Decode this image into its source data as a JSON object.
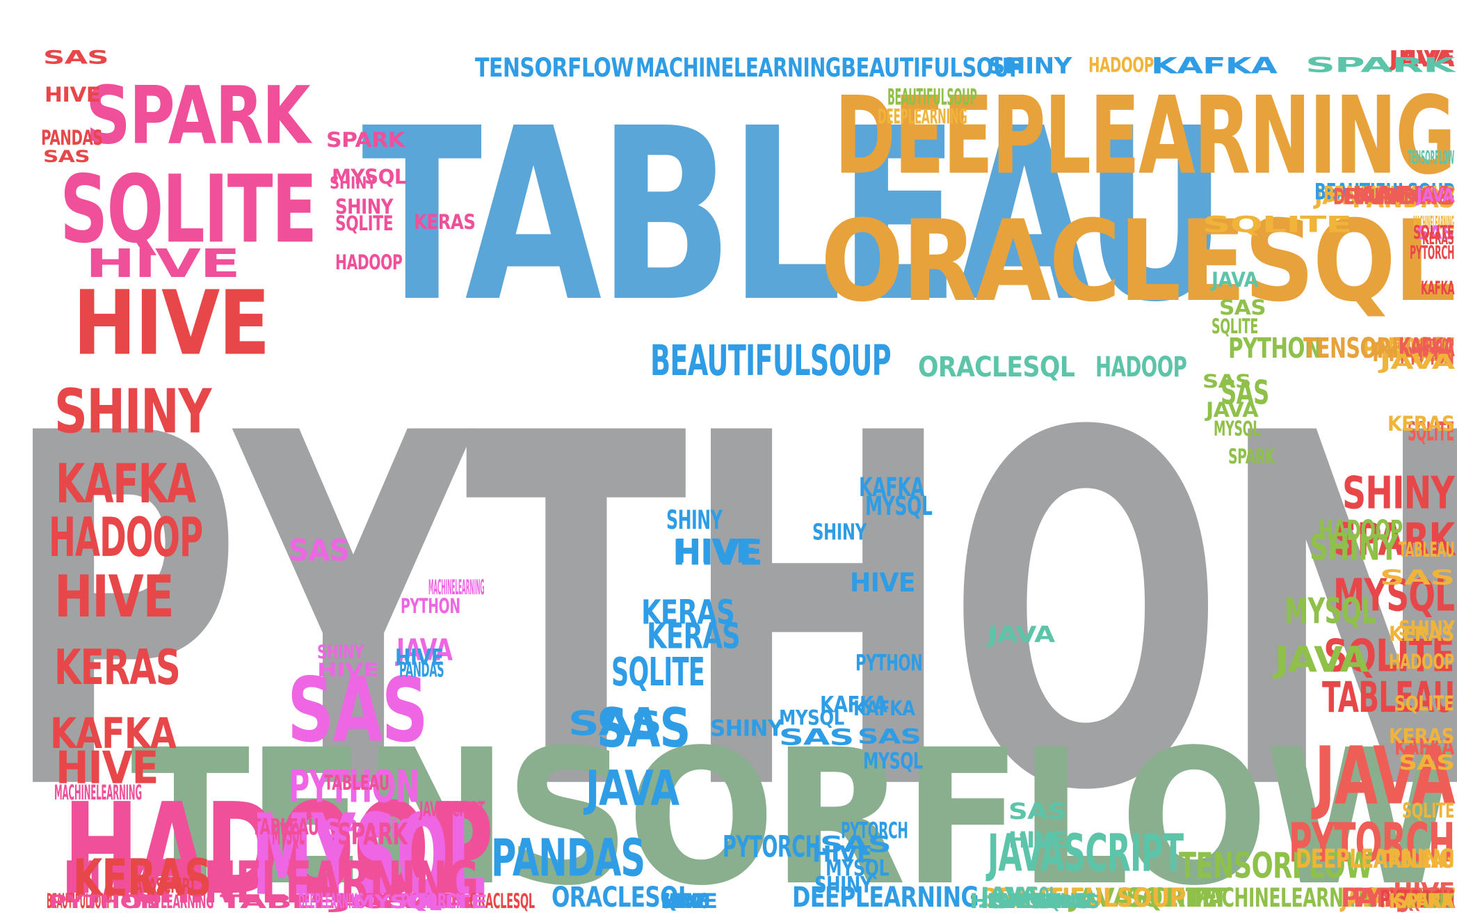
{
  "palette": {
    "red": "#e8474a",
    "coral": "#ee5e57",
    "pink": "#f0509a",
    "magenta": "#ee66e4",
    "blue": "#5aa6d9",
    "skyblue": "#2f9de6",
    "teal": "#5cc4a8",
    "green": "#8aaf8e",
    "lime": "#8fc04a",
    "orange": "#e8a23c",
    "gold": "#f0b43a",
    "gray": "#a0a2a3"
  },
  "words": [
    {
      "text": "PYTHON",
      "color": "gray",
      "size": 8
    },
    {
      "text": "TABLEAU",
      "color": "blue",
      "size": 7
    },
    {
      "text": "TENSORFLOW",
      "color": "green",
      "size": 7
    },
    {
      "text": "DEEPLEARNING",
      "color": "orange",
      "size": 5
    },
    {
      "text": "ORACLESQL",
      "color": "orange",
      "size": 5
    },
    {
      "text": "HADOOP",
      "color": "pink",
      "size": 5
    },
    {
      "text": "MYSQL",
      "color": "magenta",
      "size": 4
    },
    {
      "text": "SQLITE",
      "color": "pink",
      "size": 4
    },
    {
      "text": "SPARK",
      "color": "pink",
      "size": 4
    },
    {
      "text": "HIVE",
      "color": "red",
      "size": 4
    },
    {
      "text": "SAS",
      "color": "magenta",
      "size": 4
    },
    {
      "text": "JAVA",
      "color": "coral",
      "size": 4
    },
    {
      "text": "MACHINELEARNING",
      "color": "pink",
      "size": 3
    },
    {
      "text": "SHINY",
      "color": "red",
      "size": 3
    },
    {
      "text": "KAFKA",
      "color": "red",
      "size": 3
    },
    {
      "text": "HADOOP",
      "color": "red",
      "size": 3
    },
    {
      "text": "HIVE",
      "color": "red",
      "size": 3
    },
    {
      "text": "KERAS",
      "color": "red",
      "size": 3
    },
    {
      "text": "KERAS",
      "color": "red",
      "size": 3
    },
    {
      "text": "JAVASCRIPT",
      "color": "teal",
      "size": 3
    },
    {
      "text": "PYTORCH",
      "color": "coral",
      "size": 3
    },
    {
      "text": "PANDAS",
      "color": "skyblue",
      "size": 3
    },
    {
      "text": "SAS",
      "color": "skyblue",
      "size": 3
    },
    {
      "text": "JAVA",
      "color": "skyblue",
      "size": 3
    },
    {
      "text": "PYTHON",
      "color": "magenta",
      "size": 3
    },
    {
      "text": "SPARK",
      "color": "red",
      "size": 3
    },
    {
      "text": "SHINY",
      "color": "red",
      "size": 3
    },
    {
      "text": "MYSQL",
      "color": "red",
      "size": 3
    },
    {
      "text": "SQLITE",
      "color": "red",
      "size": 3
    },
    {
      "text": "TABLEAU",
      "color": "red",
      "size": 3
    },
    {
      "text": "BEAUTIFULSOUP",
      "color": "skyblue",
      "size": 3
    },
    {
      "text": "TENSORFLOW",
      "color": "lime",
      "size": 3
    },
    {
      "text": "SQLITE",
      "color": "skyblue",
      "size": 3
    },
    {
      "text": "KAFKA",
      "color": "red",
      "size": 3
    },
    {
      "text": "HIVE",
      "color": "red",
      "size": 3
    },
    {
      "text": "HIVE",
      "color": "pink",
      "size": 3
    },
    {
      "text": "PYTORCH",
      "color": "skyblue",
      "size": 2
    },
    {
      "text": "DEEPLEARNING",
      "color": "skyblue",
      "size": 2
    },
    {
      "text": "ORACLESQL",
      "color": "skyblue",
      "size": 2
    },
    {
      "text": "TENSORFLOW",
      "color": "skyblue",
      "size": 2
    },
    {
      "text": "MACHINELEARNING",
      "color": "skyblue",
      "size": 2
    },
    {
      "text": "BEAUTIFULSOUP",
      "color": "skyblue",
      "size": 2
    },
    {
      "text": "ORACLESQL",
      "color": "teal",
      "size": 2
    },
    {
      "text": "HADOOP",
      "color": "teal",
      "size": 2
    },
    {
      "text": "PYTHON",
      "color": "lime",
      "size": 2
    },
    {
      "text": "PANDAS",
      "color": "gold",
      "size": 2
    },
    {
      "text": "SAS",
      "color": "gold",
      "size": 2
    },
    {
      "text": "PYTHON",
      "color": "orange",
      "size": 2
    },
    {
      "text": "TENSORFLOW",
      "color": "orange",
      "size": 2
    },
    {
      "text": "KAFKA",
      "color": "coral",
      "size": 2
    },
    {
      "text": "DEEPLEARNING",
      "color": "gold",
      "size": 2
    },
    {
      "text": "TABLEAU",
      "color": "gold",
      "size": 2
    },
    {
      "text": "PANDAS",
      "color": "gold",
      "size": 2
    },
    {
      "text": "SHINY",
      "color": "lime",
      "size": 2
    },
    {
      "text": "MYSQL",
      "color": "lime",
      "size": 2
    },
    {
      "text": "JAVA",
      "color": "lime",
      "size": 2
    },
    {
      "text": "HADOOP",
      "color": "lime",
      "size": 2
    },
    {
      "text": "SAS",
      "color": "lime",
      "size": 2
    },
    {
      "text": "HIVE",
      "color": "skyblue",
      "size": 2
    },
    {
      "text": "KERAS",
      "color": "skyblue",
      "size": 2
    },
    {
      "text": "SAS",
      "color": "skyblue",
      "size": 2
    },
    {
      "text": "KERAS",
      "color": "skyblue",
      "size": 2
    },
    {
      "text": "HIVE",
      "color": "skyblue",
      "size": 2
    },
    {
      "text": "SHINY",
      "color": "skyblue",
      "size": 2
    },
    {
      "text": "KAFKA",
      "color": "skyblue",
      "size": 2
    },
    {
      "text": "MYSQL",
      "color": "skyblue",
      "size": 2
    },
    {
      "text": "HIVE",
      "color": "skyblue",
      "size": 2
    },
    {
      "text": "JAVA",
      "color": "magenta",
      "size": 2
    },
    {
      "text": "SPARK",
      "color": "magenta",
      "size": 2
    },
    {
      "text": "SAS",
      "color": "magenta",
      "size": 2
    },
    {
      "text": "TABLEAU",
      "color": "pink",
      "size": 2
    },
    {
      "text": "MYSQL",
      "color": "pink",
      "size": 2
    },
    {
      "text": "SPARK",
      "color": "pink",
      "size": 2
    },
    {
      "text": "JAVASCRIPT",
      "color": "lime",
      "size": 2
    },
    {
      "text": "SQLITE",
      "color": "lime",
      "size": 2
    },
    {
      "text": "MACHINELEARNING",
      "color": "lime",
      "size": 2
    },
    {
      "text": "JAVASCRIPT",
      "color": "gold",
      "size": 2
    },
    {
      "text": "PYTHON",
      "color": "gold",
      "size": 2
    },
    {
      "text": "PYTORCH",
      "color": "coral",
      "size": 2
    },
    {
      "text": "PANDAS",
      "color": "coral",
      "size": 2
    },
    {
      "text": "JAVA",
      "color": "coral",
      "size": 2
    },
    {
      "text": "SQLITE",
      "color": "coral",
      "size": 2
    },
    {
      "text": "PYTHON",
      "color": "coral",
      "size": 2
    },
    {
      "text": "KERAS",
      "color": "coral",
      "size": 2
    },
    {
      "text": "HIVE",
      "color": "coral",
      "size": 2
    },
    {
      "text": "PYTORCH",
      "color": "coral",
      "size": 2
    },
    {
      "text": "SQLITE",
      "color": "coral",
      "size": 2
    },
    {
      "text": "SPARK",
      "color": "coral",
      "size": 2
    },
    {
      "text": "HADOOP",
      "color": "coral",
      "size": 2
    },
    {
      "text": "JAVA",
      "color": "coral",
      "size": 2
    },
    {
      "text": "KAFKA",
      "color": "coral",
      "size": 2
    },
    {
      "text": "HIVE",
      "color": "coral",
      "size": 2
    },
    {
      "text": "SQLITE",
      "color": "coral",
      "size": 2
    },
    {
      "text": "PANDAS",
      "color": "coral",
      "size": 2
    },
    {
      "text": "SPARK",
      "color": "red",
      "size": 2
    },
    {
      "text": "PYTORCH",
      "color": "red",
      "size": 2
    },
    {
      "text": "SAS",
      "color": "red",
      "size": 2
    },
    {
      "text": "JAVA",
      "color": "red",
      "size": 2
    },
    {
      "text": "HIVE",
      "color": "red",
      "size": 2
    },
    {
      "text": "TENSORFLOW",
      "color": "teal",
      "size": 2
    },
    {
      "text": "MACHINELEARNING",
      "color": "gold",
      "size": 2
    },
    {
      "text": "BEAUTIFULSOUP",
      "color": "gold",
      "size": 2
    },
    {
      "text": "JAVASCRIPT",
      "color": "gold",
      "size": 2
    },
    {
      "text": "BEAUTIFULSOUP",
      "color": "skyblue",
      "size": 2
    },
    {
      "text": "SPARK",
      "color": "teal",
      "size": 2
    },
    {
      "text": "SQLITE",
      "color": "gold",
      "size": 2
    },
    {
      "text": "HADOOP",
      "color": "gold",
      "size": 2
    },
    {
      "text": "SHINY",
      "color": "skyblue",
      "size": 2
    },
    {
      "text": "KAFKA",
      "color": "skyblue",
      "size": 2
    },
    {
      "text": "BEAUTIFULSOUP",
      "color": "lime",
      "size": 2
    },
    {
      "text": "DEEPLEARNING",
      "color": "gold",
      "size": 2
    },
    {
      "text": "BEAUTIFULSOUP",
      "color": "gold",
      "size": 2
    },
    {
      "text": "DEEPLEARNING",
      "color": "coral",
      "size": 2
    },
    {
      "text": "PANDAS",
      "color": "coral",
      "size": 2
    },
    {
      "text": "KAFKA",
      "color": "coral",
      "size": 2
    },
    {
      "text": "JAVA",
      "color": "magenta",
      "size": 2
    },
    {
      "text": "SAS",
      "color": "magenta",
      "size": 2
    },
    {
      "text": "HIVE",
      "color": "skyblue",
      "size": 2
    },
    {
      "text": "PANDAS",
      "color": "skyblue",
      "size": 2
    },
    {
      "text": "SAS",
      "color": "skyblue",
      "size": 2
    },
    {
      "text": "SHINY",
      "color": "skyblue",
      "size": 2
    },
    {
      "text": "MYSQL",
      "color": "skyblue",
      "size": 2
    },
    {
      "text": "SHINY",
      "color": "skyblue",
      "size": 2
    },
    {
      "text": "KAFKA",
      "color": "skyblue",
      "size": 2
    },
    {
      "text": "SAS",
      "color": "skyblue",
      "size": 2
    },
    {
      "text": "MYSQL",
      "color": "skyblue",
      "size": 2
    },
    {
      "text": "SHINY",
      "color": "skyblue",
      "size": 2
    },
    {
      "text": "HIVE",
      "color": "skyblue",
      "size": 2
    },
    {
      "text": "PYTORCH",
      "color": "skyblue",
      "size": 2
    },
    {
      "text": "PYTHON",
      "color": "skyblue",
      "size": 2
    },
    {
      "text": "MYSQL",
      "color": "skyblue",
      "size": 2
    },
    {
      "text": "SAS",
      "color": "skyblue",
      "size": 2
    },
    {
      "text": "KAFKA",
      "color": "skyblue",
      "size": 1
    },
    {
      "text": "HIVE",
      "color": "skyblue",
      "size": 1
    },
    {
      "text": "SHINY",
      "color": "skyblue",
      "size": 1
    },
    {
      "text": "HIVE",
      "color": "skyblue",
      "size": 1
    },
    {
      "text": "PANDAS",
      "color": "skyblue",
      "size": 1
    },
    {
      "text": "KERAS",
      "color": "teal",
      "size": 1
    },
    {
      "text": "JAVA",
      "color": "teal",
      "size": 1
    },
    {
      "text": "SAS",
      "color": "teal",
      "size": 1
    },
    {
      "text": "HIVE",
      "color": "teal",
      "size": 1
    },
    {
      "text": "MYSQL",
      "color": "teal",
      "size": 1
    },
    {
      "text": "JAVA",
      "color": "teal",
      "size": 1
    },
    {
      "text": "SAS",
      "color": "teal",
      "size": 1
    },
    {
      "text": "KAFKA",
      "color": "teal",
      "size": 1
    },
    {
      "text": "SHINY",
      "color": "teal",
      "size": 1
    },
    {
      "text": "HIVE",
      "color": "teal",
      "size": 1
    },
    {
      "text": "SAS",
      "color": "teal",
      "size": 1
    },
    {
      "text": "SQLITE",
      "color": "teal",
      "size": 1
    },
    {
      "text": "PANDAS",
      "color": "teal",
      "size": 1
    },
    {
      "text": "JAVA",
      "color": "teal",
      "size": 1
    },
    {
      "text": "SAS",
      "color": "lime",
      "size": 1
    },
    {
      "text": "SQLITE",
      "color": "lime",
      "size": 1
    },
    {
      "text": "SAS",
      "color": "lime",
      "size": 1
    },
    {
      "text": "JAVA",
      "color": "lime",
      "size": 1
    },
    {
      "text": "MYSQL",
      "color": "lime",
      "size": 1
    },
    {
      "text": "SPARK",
      "color": "lime",
      "size": 1
    },
    {
      "text": "SHINY",
      "color": "lime",
      "size": 1
    },
    {
      "text": "KAFKA",
      "color": "gold",
      "size": 1
    },
    {
      "text": "SPARK",
      "color": "gold",
      "size": 1
    },
    {
      "text": "SQLITE",
      "color": "gold",
      "size": 1
    },
    {
      "text": "SAS",
      "color": "gold",
      "size": 1
    },
    {
      "text": "KERAS",
      "color": "gold",
      "size": 1
    },
    {
      "text": "SQLITE",
      "color": "gold",
      "size": 1
    },
    {
      "text": "HADOOP",
      "color": "gold",
      "size": 1
    },
    {
      "text": "KERAS",
      "color": "gold",
      "size": 1
    },
    {
      "text": "SHINY",
      "color": "gold",
      "size": 1
    },
    {
      "text": "SAS",
      "color": "gold",
      "size": 1
    },
    {
      "text": "TABLEAU",
      "color": "gold",
      "size": 1
    },
    {
      "text": "KERAS",
      "color": "gold",
      "size": 1
    },
    {
      "text": "JAVA",
      "color": "gold",
      "size": 1
    },
    {
      "text": "HADOOP",
      "color": "coral",
      "size": 1
    },
    {
      "text": "KAFKA",
      "color": "red",
      "size": 1
    },
    {
      "text": "PYTORCH",
      "color": "red",
      "size": 1
    },
    {
      "text": "KERAS",
      "color": "red",
      "size": 1
    },
    {
      "text": "SQLITE",
      "color": "red",
      "size": 1
    },
    {
      "text": "HIVE",
      "color": "red",
      "size": 1
    },
    {
      "text": "PANDAS",
      "color": "red",
      "size": 1
    },
    {
      "text": "SAS",
      "color": "red",
      "size": 1
    },
    {
      "text": "SPARK",
      "color": "pink",
      "size": 1
    },
    {
      "text": "MYSQL",
      "color": "pink",
      "size": 1
    },
    {
      "text": "SHINY",
      "color": "pink",
      "size": 1
    },
    {
      "text": "SQLITE",
      "color": "pink",
      "size": 1
    },
    {
      "text": "HADOOP",
      "color": "pink",
      "size": 1
    },
    {
      "text": "KERAS",
      "color": "pink",
      "size": 1
    },
    {
      "text": "SHINY",
      "color": "pink",
      "size": 1
    },
    {
      "text": "TABLEAU",
      "color": "pink",
      "size": 1
    },
    {
      "text": "JAVASCRIPT",
      "color": "pink",
      "size": 1
    },
    {
      "text": "PYTHON",
      "color": "pink",
      "size": 1
    },
    {
      "text": "JAVA",
      "color": "pink",
      "size": 1
    },
    {
      "text": "ORACLESQL",
      "color": "red",
      "size": 1
    },
    {
      "text": "BEAUTIFULSOUP",
      "color": "red",
      "size": 1
    },
    {
      "text": "JAVASCRIPT",
      "color": "red",
      "size": 1
    },
    {
      "text": "MACHINELEARNING",
      "color": "pink",
      "size": 1
    },
    {
      "text": "PYTHON",
      "color": "pink",
      "size": 1
    },
    {
      "text": "DEEPLEARNING",
      "color": "pink",
      "size": 1
    },
    {
      "text": "TABLEAU",
      "color": "pink",
      "size": 1
    },
    {
      "text": "MYSQL",
      "color": "magenta",
      "size": 1
    },
    {
      "text": "SQLITE",
      "color": "magenta",
      "size": 1
    },
    {
      "text": "DEEPLEARNING",
      "color": "magenta",
      "size": 1
    },
    {
      "text": "PYTORCH",
      "color": "magenta",
      "size": 1
    },
    {
      "text": "MACHINELEARNING",
      "color": "magenta",
      "size": 1
    },
    {
      "text": "PYTHON",
      "color": "magenta",
      "size": 1
    },
    {
      "text": "SHINY",
      "color": "magenta",
      "size": 1
    },
    {
      "text": "HIVE",
      "color": "magenta",
      "size": 1
    }
  ]
}
